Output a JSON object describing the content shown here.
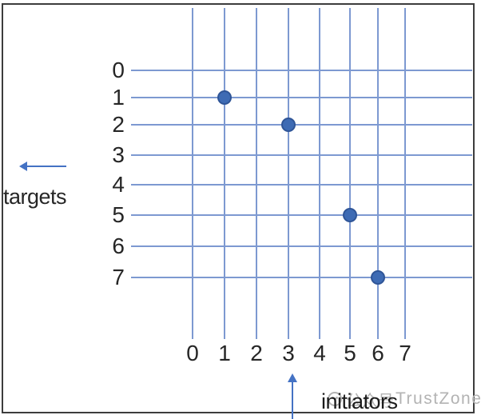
{
  "chart_data": {
    "type": "scatter",
    "title": "",
    "xlabel": "initiators",
    "ylabel": "targets",
    "x_ticks": [
      "0",
      "1",
      "2",
      "3",
      "4",
      "5",
      "6",
      "7"
    ],
    "y_ticks": [
      "0",
      "1",
      "2",
      "3",
      "4",
      "5",
      "6",
      "7"
    ],
    "x_range": [
      0,
      7
    ],
    "y_range": [
      0,
      7
    ],
    "grid": true,
    "legend": "none",
    "points": [
      {
        "initiator": 1,
        "target": 1
      },
      {
        "initiator": 3,
        "target": 2
      },
      {
        "initiator": 5,
        "target": 5
      },
      {
        "initiator": 6,
        "target": 7
      }
    ]
  },
  "watermark": {
    "icon": "wechat-official-account-icon",
    "cn": "公众号",
    "en": "TrustZone"
  },
  "colors": {
    "grid_line": "#7d99d1",
    "point_fill": "#3e6bb4",
    "point_border": "#2f5597",
    "arrow": "#4472c4",
    "axis_text": "#262626",
    "watermark_text": "#b3b3b3",
    "frame_border": "#3d3d3d",
    "background": "#ffffff"
  }
}
